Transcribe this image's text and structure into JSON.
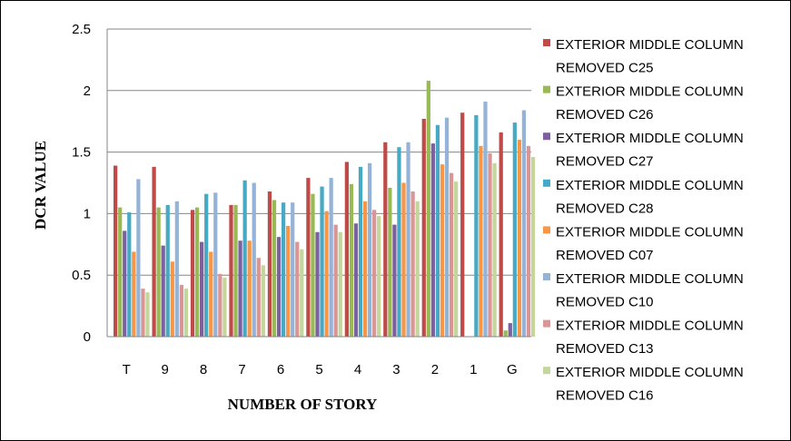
{
  "chart_data": {
    "type": "bar",
    "title": "",
    "xlabel": "NUMBER OF STORY",
    "ylabel": "DCR VALUE",
    "ylim": [
      0,
      2.5
    ],
    "yticks": [
      "0",
      "0.5",
      "1",
      "1.5",
      "2",
      "2.5"
    ],
    "grid": true,
    "legend_position": "right",
    "categories": [
      "T",
      "9",
      "8",
      "7",
      "6",
      "5",
      "4",
      "3",
      "2",
      "1",
      "G"
    ],
    "series": [
      {
        "name": "EXTERIOR MIDDLE COLUMN REMOVED C25",
        "color": "#BE4B48",
        "values": [
          1.39,
          1.38,
          1.03,
          1.07,
          1.18,
          1.29,
          1.42,
          1.58,
          1.77,
          1.82,
          1.66
        ]
      },
      {
        "name": "EXTERIOR MIDDLE COLUMN REMOVED C26",
        "color": "#98B954",
        "values": [
          1.05,
          1.05,
          1.05,
          1.07,
          1.11,
          1.16,
          1.24,
          1.21,
          2.08,
          0,
          0.05
        ]
      },
      {
        "name": "EXTERIOR MIDDLE COLUMN REMOVED C27",
        "color": "#7D60A0",
        "values": [
          0.86,
          0.74,
          0.77,
          0.78,
          0.81,
          0.85,
          0.92,
          0.91,
          1.57,
          0,
          0.11
        ]
      },
      {
        "name": "EXTERIOR MIDDLE COLUMN REMOVED C28",
        "color": "#46AAC5",
        "values": [
          1.01,
          1.07,
          1.16,
          1.27,
          1.09,
          1.22,
          1.38,
          1.54,
          1.72,
          1.8,
          1.74
        ]
      },
      {
        "name": "EXTERIOR MIDDLE COLUMN REMOVED C07",
        "color": "#F79646",
        "values": [
          0.69,
          0.61,
          0.69,
          0.78,
          0.9,
          1.02,
          1.1,
          1.25,
          1.4,
          1.55,
          1.6
        ]
      },
      {
        "name": "EXTERIOR MIDDLE COLUMN REMOVED C10",
        "color": "#95B3D7",
        "values": [
          1.28,
          1.1,
          1.17,
          1.25,
          1.09,
          1.29,
          1.41,
          1.58,
          1.78,
          1.91,
          1.84
        ]
      },
      {
        "name": "EXTERIOR MIDDLE COLUMN REMOVED C13",
        "color": "#DA9694",
        "values": [
          0.39,
          0.42,
          0.51,
          0.64,
          0.77,
          0.91,
          1.03,
          1.18,
          1.33,
          1.49,
          1.55
        ]
      },
      {
        "name": "EXTERIOR MIDDLE COLUMN REMOVED C16",
        "color": "#C3D69B",
        "values": [
          0.36,
          0.39,
          0.48,
          0.58,
          0.71,
          0.85,
          0.98,
          1.1,
          1.26,
          1.41,
          1.46
        ]
      }
    ]
  }
}
